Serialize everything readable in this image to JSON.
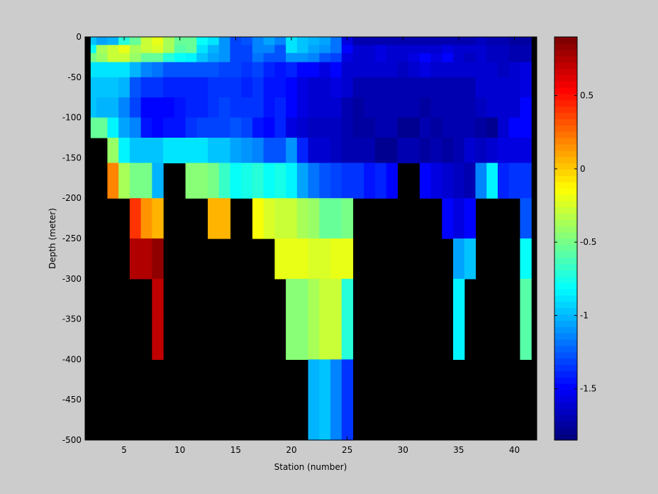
{
  "chart_data": {
    "type": "heatmap",
    "title": "",
    "xlabel": "Station (number)",
    "ylabel": "Depth (meter)",
    "xlim": [
      1.5,
      42
    ],
    "ylim": [
      -500,
      0
    ],
    "x_ticks": [
      5,
      10,
      15,
      20,
      25,
      30,
      35,
      40
    ],
    "y_ticks": [
      0,
      -50,
      -100,
      -150,
      -200,
      -250,
      -300,
      -350,
      -400,
      -450,
      -500
    ],
    "colormap": "jet",
    "background_color": "#000000",
    "colorbar": {
      "range": [
        -1.85,
        0.9
      ],
      "ticks": [
        0.5,
        0,
        -0.5,
        -1,
        -1.5
      ],
      "levels": 64,
      "placement": "right"
    },
    "stations": [
      2,
      3,
      4,
      5,
      6,
      7,
      8,
      9,
      10,
      11,
      12,
      13,
      14,
      15,
      16,
      17,
      18,
      19,
      20,
      21,
      22,
      23,
      24,
      25,
      26,
      27,
      28,
      29,
      30,
      31,
      32,
      33,
      34,
      35,
      36,
      37,
      38,
      39,
      40,
      41
    ],
    "depth_bins": [
      -5,
      -15,
      -25,
      -37.5,
      -62.5,
      -87.5,
      -112.5,
      -137.5,
      -175,
      -225,
      -275,
      -325,
      -375,
      -425,
      -475
    ],
    "values": [
      [
        -0.95,
        -1.05,
        -1.0,
        -0.7,
        -0.55,
        -0.3,
        -0.2,
        -0.35,
        -0.55,
        -0.55,
        -0.8,
        -0.9,
        -1.1,
        -1.3,
        -1.25,
        -1.15,
        -1.05,
        -1.15,
        -0.9,
        -0.95,
        -1.0,
        -1.05,
        -1.2,
        -1.55,
        -1.72,
        -1.72,
        -1.7,
        -1.72,
        -1.72,
        -1.72,
        -1.68,
        -1.68,
        -1.7,
        -1.72,
        -1.7,
        -1.65,
        -1.7,
        -1.72,
        -1.75,
        -1.75
      ],
      [
        -0.8,
        -0.35,
        -0.3,
        -0.2,
        -0.35,
        -0.3,
        -0.25,
        -0.35,
        -0.6,
        -0.55,
        -0.9,
        -1.0,
        -1.1,
        -1.3,
        -1.3,
        -1.15,
        -1.15,
        -1.25,
        -0.9,
        -0.95,
        -1.05,
        -1.1,
        -1.2,
        -1.5,
        -1.6,
        -1.6,
        -1.58,
        -1.62,
        -1.6,
        -1.6,
        -1.62,
        -1.6,
        -1.58,
        -1.6,
        -1.62,
        -1.6,
        -1.65,
        -1.65,
        -1.7,
        -1.72
      ],
      [
        -0.5,
        -0.4,
        -0.3,
        -0.3,
        -0.4,
        -0.55,
        -0.55,
        -0.7,
        -0.8,
        -0.85,
        -0.95,
        -1.05,
        -1.1,
        -1.3,
        -1.3,
        -1.2,
        -1.25,
        -1.25,
        -1.1,
        -1.1,
        -1.15,
        -1.25,
        -1.3,
        -1.55,
        -1.6,
        -1.6,
        -1.55,
        -1.6,
        -1.6,
        -1.55,
        -1.48,
        -1.55,
        -1.5,
        -1.6,
        -1.65,
        -1.6,
        -1.65,
        -1.65,
        -1.7,
        -1.72
      ],
      [
        -0.9,
        -0.9,
        -0.9,
        -0.9,
        -1.0,
        -1.15,
        -1.2,
        -1.25,
        -1.25,
        -1.25,
        -1.25,
        -1.25,
        -1.3,
        -1.3,
        -1.35,
        -1.3,
        -1.4,
        -1.45,
        -1.4,
        -1.5,
        -1.5,
        -1.55,
        -1.5,
        -1.6,
        -1.62,
        -1.62,
        -1.6,
        -1.62,
        -1.65,
        -1.62,
        -1.58,
        -1.6,
        -1.62,
        -1.62,
        -1.62,
        -1.6,
        -1.62,
        -1.65,
        -1.62,
        -1.55
      ],
      [
        -0.95,
        -0.95,
        -0.95,
        -1.0,
        -1.25,
        -1.35,
        -1.35,
        -1.4,
        -1.4,
        -1.4,
        -1.4,
        -1.35,
        -1.35,
        -1.35,
        -1.4,
        -1.35,
        -1.45,
        -1.45,
        -1.5,
        -1.55,
        -1.6,
        -1.6,
        -1.55,
        -1.6,
        -1.7,
        -1.7,
        -1.72,
        -1.72,
        -1.7,
        -1.7,
        -1.7,
        -1.7,
        -1.7,
        -1.72,
        -1.68,
        -1.6,
        -1.6,
        -1.6,
        -1.6,
        -1.55
      ],
      [
        -0.95,
        -1.0,
        -1.0,
        -1.15,
        -1.3,
        -1.5,
        -1.5,
        -1.5,
        -1.45,
        -1.4,
        -1.4,
        -1.35,
        -1.3,
        -1.35,
        -1.35,
        -1.35,
        -1.45,
        -1.4,
        -1.5,
        -1.55,
        -1.6,
        -1.6,
        -1.6,
        -1.72,
        -1.75,
        -1.72,
        -1.72,
        -1.72,
        -1.7,
        -1.7,
        -1.75,
        -1.72,
        -1.72,
        -1.7,
        -1.68,
        -1.65,
        -1.6,
        -1.6,
        -1.6,
        -1.5
      ],
      [
        -0.55,
        -0.55,
        -0.85,
        -1.05,
        -1.15,
        -1.45,
        -1.5,
        -1.45,
        -1.45,
        -1.35,
        -1.3,
        -1.3,
        -1.3,
        -1.25,
        -1.3,
        -1.45,
        -1.5,
        -1.4,
        -1.55,
        -1.6,
        -1.65,
        -1.65,
        -1.65,
        -1.72,
        -1.75,
        -1.75,
        -1.72,
        -1.72,
        -1.78,
        -1.78,
        -1.72,
        -1.75,
        -1.72,
        -1.7,
        -1.72,
        -1.75,
        -1.8,
        -1.6,
        -1.5,
        -1.5
      ],
      [
        null,
        null,
        -0.4,
        -0.85,
        -0.95,
        -0.95,
        -0.95,
        -0.9,
        -0.9,
        -0.9,
        -0.9,
        -0.95,
        -0.95,
        -1.05,
        -1.1,
        -1.15,
        -1.25,
        -1.25,
        -1.1,
        -1.4,
        -1.6,
        -1.6,
        -1.65,
        -1.72,
        -1.72,
        -1.72,
        -1.8,
        -1.8,
        -1.72,
        -1.72,
        -1.75,
        -1.72,
        -1.75,
        -1.72,
        -1.62,
        -1.65,
        -1.62,
        -1.55,
        -1.55,
        -1.55
      ],
      [
        null,
        null,
        0.2,
        -0.35,
        -0.5,
        -0.5,
        -1.0,
        null,
        null,
        -0.45,
        -0.45,
        -0.5,
        -0.65,
        -0.8,
        -0.75,
        -0.7,
        -0.8,
        -0.75,
        -0.85,
        -1.05,
        -1.2,
        -1.25,
        -1.3,
        -1.35,
        -1.35,
        -1.45,
        -1.4,
        -1.5,
        null,
        null,
        -1.5,
        -1.55,
        -1.6,
        -1.65,
        -1.7,
        -1.15,
        -0.85,
        -1.4,
        -1.35,
        -1.35
      ],
      [
        null,
        null,
        null,
        null,
        0.4,
        0.15,
        0.05,
        null,
        null,
        null,
        null,
        0.05,
        0.05,
        null,
        null,
        -0.15,
        -0.25,
        -0.3,
        -0.3,
        -0.35,
        -0.4,
        -0.55,
        -0.55,
        -0.5,
        null,
        null,
        null,
        null,
        null,
        null,
        null,
        null,
        -1.5,
        -1.55,
        -1.5,
        null,
        null,
        null,
        null,
        -1.25
      ],
      [
        null,
        null,
        null,
        null,
        0.75,
        0.75,
        0.85,
        null,
        null,
        null,
        null,
        null,
        null,
        null,
        null,
        null,
        null,
        -0.2,
        -0.2,
        -0.2,
        -0.25,
        -0.25,
        -0.2,
        -0.2,
        null,
        null,
        null,
        null,
        null,
        null,
        null,
        null,
        null,
        -1.05,
        -0.95,
        null,
        null,
        null,
        null,
        -0.8
      ],
      [
        null,
        null,
        null,
        null,
        null,
        null,
        0.7,
        null,
        null,
        null,
        null,
        null,
        null,
        null,
        null,
        null,
        null,
        null,
        -0.45,
        -0.45,
        -0.35,
        -0.3,
        -0.3,
        -0.7,
        null,
        null,
        null,
        null,
        null,
        null,
        null,
        null,
        null,
        -0.85,
        null,
        null,
        null,
        null,
        null,
        -0.6
      ],
      [
        null,
        null,
        null,
        null,
        null,
        null,
        0.7,
        null,
        null,
        null,
        null,
        null,
        null,
        null,
        null,
        null,
        null,
        null,
        -0.45,
        -0.45,
        -0.35,
        -0.3,
        -0.3,
        -0.7,
        null,
        null,
        null,
        null,
        null,
        null,
        null,
        null,
        null,
        -0.85,
        null,
        null,
        null,
        null,
        null,
        -0.6
      ],
      [
        null,
        null,
        null,
        null,
        null,
        null,
        null,
        null,
        null,
        null,
        null,
        null,
        null,
        null,
        null,
        null,
        null,
        null,
        null,
        null,
        -1.0,
        -0.95,
        -1.15,
        -1.35,
        null,
        null,
        null,
        null,
        null,
        null,
        null,
        null,
        null,
        null,
        null,
        null,
        null,
        null,
        null,
        null
      ],
      [
        null,
        null,
        null,
        null,
        null,
        null,
        null,
        null,
        null,
        null,
        null,
        null,
        null,
        null,
        null,
        null,
        null,
        null,
        null,
        null,
        -1.0,
        -0.95,
        -1.15,
        -1.35,
        null,
        null,
        null,
        null,
        null,
        null,
        null,
        null,
        null,
        null,
        null,
        null,
        null,
        null,
        null,
        null
      ]
    ]
  }
}
